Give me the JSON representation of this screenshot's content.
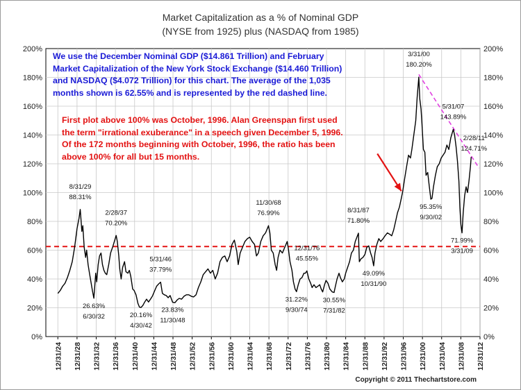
{
  "chart_data": {
    "type": "line",
    "title": "Market Capitalization as a % of Nominal GDP",
    "subtitle": "(NYSE from 1925) plus (NASDAQ from 1985)",
    "xlabel": "",
    "ylabel": "",
    "y_unit": "%",
    "xlim": [
      1922.5,
      2013.0
    ],
    "ylim": [
      0,
      200
    ],
    "y_ticks": [
      0,
      20,
      40,
      60,
      80,
      100,
      120,
      140,
      160,
      180,
      200
    ],
    "y_tick_labels": [
      "0%",
      "20%",
      "40%",
      "60%",
      "80%",
      "100%",
      "120%",
      "140%",
      "160%",
      "180%",
      "200%"
    ],
    "y_tick_labels_right": [
      "0%",
      "20%",
      "40%",
      "60%",
      "80%",
      "100%",
      "120%",
      "140%",
      "160%",
      "180%",
      "200%"
    ],
    "x_tick_labels": [
      "12/31/24",
      "12/31/28",
      "12/31/32",
      "12/31/36",
      "12/31/40",
      "12/31/44",
      "12/31/48",
      "12/31/52",
      "12/31/56",
      "12/31/60",
      "12/31/64",
      "12/31/68",
      "12/31/72",
      "12/31/76",
      "12/31/80",
      "12/31/84",
      "12/31/88",
      "12/31/92",
      "12/31/96",
      "12/31/00",
      "12/31/04",
      "12/31/08",
      "12/31/12"
    ],
    "x_tick_values": [
      1925,
      1929,
      1933,
      1937,
      1941,
      1945,
      1949,
      1953,
      1957,
      1961,
      1965,
      1969,
      1973,
      1977,
      1981,
      1985,
      1989,
      1993,
      1997,
      2001,
      2005,
      2009,
      2013
    ],
    "grid": true,
    "series": [
      {
        "color": "#000000",
        "points": [
          [
            1925.0,
            30
          ],
          [
            1925.5,
            32
          ],
          [
            1926.0,
            35
          ],
          [
            1926.5,
            37
          ],
          [
            1927.0,
            41
          ],
          [
            1927.5,
            46
          ],
          [
            1928.0,
            52
          ],
          [
            1928.5,
            62
          ],
          [
            1929.0,
            75
          ],
          [
            1929.4,
            82
          ],
          [
            1929.67,
            88.3
          ],
          [
            1929.85,
            80
          ],
          [
            1930.0,
            73
          ],
          [
            1930.2,
            77
          ],
          [
            1930.5,
            62
          ],
          [
            1930.8,
            55
          ],
          [
            1931.0,
            60
          ],
          [
            1931.3,
            50
          ],
          [
            1931.6,
            44
          ],
          [
            1931.9,
            38
          ],
          [
            1932.2,
            32
          ],
          [
            1932.5,
            26.6
          ],
          [
            1932.7,
            35
          ],
          [
            1932.9,
            44
          ],
          [
            1933.1,
            38
          ],
          [
            1933.4,
            50
          ],
          [
            1933.7,
            56
          ],
          [
            1934.0,
            58
          ],
          [
            1934.3,
            50
          ],
          [
            1934.6,
            46
          ],
          [
            1934.9,
            44
          ],
          [
            1935.2,
            43
          ],
          [
            1935.6,
            50
          ],
          [
            1936.0,
            58
          ],
          [
            1936.5,
            63
          ],
          [
            1937.16,
            70.2
          ],
          [
            1937.4,
            66
          ],
          [
            1937.7,
            56
          ],
          [
            1937.9,
            47
          ],
          [
            1938.2,
            40
          ],
          [
            1938.5,
            48
          ],
          [
            1938.9,
            52
          ],
          [
            1939.2,
            45
          ],
          [
            1939.6,
            44
          ],
          [
            1939.9,
            46
          ],
          [
            1940.2,
            42
          ],
          [
            1940.6,
            33
          ],
          [
            1940.9,
            32
          ],
          [
            1941.3,
            29
          ],
          [
            1941.7,
            23
          ],
          [
            1942.0,
            20.5
          ],
          [
            1942.33,
            20.2
          ],
          [
            1942.7,
            21.5
          ],
          [
            1943.1,
            24
          ],
          [
            1943.5,
            26
          ],
          [
            1943.9,
            24
          ],
          [
            1944.3,
            26
          ],
          [
            1944.7,
            28
          ],
          [
            1945.2,
            32
          ],
          [
            1945.6,
            35
          ],
          [
            1946.0,
            36.5
          ],
          [
            1946.42,
            37.8
          ],
          [
            1946.8,
            30
          ],
          [
            1947.2,
            29
          ],
          [
            1947.6,
            28.5
          ],
          [
            1948.0,
            27
          ],
          [
            1948.4,
            28.5
          ],
          [
            1948.92,
            23.8
          ],
          [
            1949.4,
            23.5
          ],
          [
            1949.9,
            25.5
          ],
          [
            1950.3,
            26.5
          ],
          [
            1950.8,
            26
          ],
          [
            1951.3,
            28
          ],
          [
            1951.8,
            29
          ],
          [
            1952.3,
            29
          ],
          [
            1952.8,
            28
          ],
          [
            1953.3,
            27.5
          ],
          [
            1953.8,
            29
          ],
          [
            1954.3,
            34
          ],
          [
            1954.8,
            38
          ],
          [
            1955.3,
            43
          ],
          [
            1955.8,
            45
          ],
          [
            1956.3,
            47
          ],
          [
            1956.8,
            44
          ],
          [
            1957.3,
            46
          ],
          [
            1957.8,
            40
          ],
          [
            1958.3,
            44
          ],
          [
            1958.8,
            52
          ],
          [
            1959.3,
            55
          ],
          [
            1959.8,
            56
          ],
          [
            1960.3,
            52
          ],
          [
            1960.8,
            56
          ],
          [
            1961.3,
            64
          ],
          [
            1961.8,
            67
          ],
          [
            1962.3,
            59
          ],
          [
            1962.6,
            50
          ],
          [
            1963.0,
            58
          ],
          [
            1963.5,
            62
          ],
          [
            1964.0,
            66
          ],
          [
            1964.5,
            68
          ],
          [
            1965.0,
            69
          ],
          [
            1965.5,
            66
          ],
          [
            1966.0,
            64
          ],
          [
            1966.4,
            56
          ],
          [
            1966.8,
            58
          ],
          [
            1967.3,
            66
          ],
          [
            1967.8,
            70
          ],
          [
            1968.3,
            72
          ],
          [
            1968.91,
            77
          ],
          [
            1969.2,
            72
          ],
          [
            1969.5,
            60
          ],
          [
            1969.9,
            58
          ],
          [
            1970.3,
            50
          ],
          [
            1970.6,
            46
          ],
          [
            1970.9,
            55
          ],
          [
            1971.3,
            60
          ],
          [
            1971.8,
            58
          ],
          [
            1972.3,
            62
          ],
          [
            1972.8,
            66
          ],
          [
            1973.1,
            60
          ],
          [
            1973.4,
            52
          ],
          [
            1973.8,
            46
          ],
          [
            1974.1,
            38
          ],
          [
            1974.45,
            33
          ],
          [
            1974.75,
            31.2
          ],
          [
            1975.1,
            36
          ],
          [
            1975.5,
            40
          ],
          [
            1975.9,
            41
          ],
          [
            1976.3,
            44
          ],
          [
            1976.6,
            44
          ],
          [
            1976.92,
            45.6
          ],
          [
            1977.3,
            40
          ],
          [
            1977.7,
            37
          ],
          [
            1978.0,
            34
          ],
          [
            1978.4,
            36
          ],
          [
            1978.8,
            34
          ],
          [
            1979.2,
            35
          ],
          [
            1979.6,
            36
          ],
          [
            1979.9,
            33
          ],
          [
            1980.2,
            31
          ],
          [
            1980.6,
            36
          ],
          [
            1980.9,
            39
          ],
          [
            1981.3,
            37
          ],
          [
            1981.7,
            33
          ],
          [
            1982.2,
            31
          ],
          [
            1982.58,
            30.6
          ],
          [
            1982.8,
            34
          ],
          [
            1983.2,
            40
          ],
          [
            1983.6,
            44
          ],
          [
            1983.9,
            41
          ],
          [
            1984.3,
            38
          ],
          [
            1984.7,
            40
          ],
          [
            1985.0,
            44
          ],
          [
            1985.4,
            48
          ],
          [
            1985.8,
            52
          ],
          [
            1986.2,
            58
          ],
          [
            1986.6,
            60
          ],
          [
            1987.0,
            66
          ],
          [
            1987.66,
            71.8
          ],
          [
            1987.85,
            52
          ],
          [
            1988.2,
            54
          ],
          [
            1988.6,
            55
          ],
          [
            1989.0,
            57
          ],
          [
            1989.4,
            62
          ],
          [
            1989.8,
            63
          ],
          [
            1990.2,
            58
          ],
          [
            1990.5,
            55
          ],
          [
            1990.83,
            49.1
          ],
          [
            1991.1,
            58
          ],
          [
            1991.5,
            64
          ],
          [
            1991.9,
            68
          ],
          [
            1992.3,
            66
          ],
          [
            1992.8,
            68
          ],
          [
            1993.2,
            70
          ],
          [
            1993.7,
            72
          ],
          [
            1994.2,
            71
          ],
          [
            1994.6,
            70
          ],
          [
            1995.0,
            74
          ],
          [
            1995.4,
            80
          ],
          [
            1995.8,
            86
          ],
          [
            1996.2,
            90
          ],
          [
            1996.6,
            96
          ],
          [
            1996.9,
            101
          ],
          [
            1997.3,
            110
          ],
          [
            1997.7,
            118
          ],
          [
            1998.1,
            126
          ],
          [
            1998.5,
            124
          ],
          [
            1998.8,
            130
          ],
          [
            1999.2,
            140
          ],
          [
            1999.6,
            150
          ],
          [
            1999.9,
            166
          ],
          [
            2000.25,
            180.2
          ],
          [
            2000.45,
            165
          ],
          [
            2000.7,
            158
          ],
          [
            2000.9,
            148
          ],
          [
            2001.2,
            130
          ],
          [
            2001.5,
            128
          ],
          [
            2001.75,
            112
          ],
          [
            2002.1,
            114
          ],
          [
            2002.4,
            105
          ],
          [
            2002.75,
            95.35
          ],
          [
            2003.0,
            96
          ],
          [
            2003.3,
            104
          ],
          [
            2003.7,
            112
          ],
          [
            2004.1,
            118
          ],
          [
            2004.5,
            120
          ],
          [
            2004.9,
            124
          ],
          [
            2005.3,
            126
          ],
          [
            2005.7,
            128
          ],
          [
            2006.1,
            133
          ],
          [
            2006.5,
            130
          ],
          [
            2006.9,
            138
          ],
          [
            2007.42,
            143.9
          ],
          [
            2007.7,
            140
          ],
          [
            2008.0,
            132
          ],
          [
            2008.3,
            122
          ],
          [
            2008.6,
            108
          ],
          [
            2008.8,
            90
          ],
          [
            2009.0,
            78
          ],
          [
            2009.25,
            72
          ],
          [
            2009.5,
            86
          ],
          [
            2009.8,
            98
          ],
          [
            2010.1,
            104
          ],
          [
            2010.4,
            100
          ],
          [
            2010.7,
            108
          ],
          [
            2011.0,
            118
          ],
          [
            2011.16,
            124.7
          ]
        ]
      }
    ],
    "reference_lines": [
      {
        "type": "horizontal",
        "value": 62.55,
        "color": "#e31212",
        "style": "dashed"
      },
      {
        "type": "trend",
        "from": [
          2000.25,
          182
        ],
        "to": [
          2012.8,
          117
        ],
        "color": "#e040e0",
        "style": "dashed"
      }
    ],
    "annotations": [
      {
        "lines": [
          "8/31/29",
          "88.31%"
        ],
        "x": 1929.67,
        "y": 88.3
      },
      {
        "lines": [
          "26.63%",
          "6/30/32"
        ],
        "x": 1932.5,
        "y": 26.6
      },
      {
        "lines": [
          "2/28/37",
          "70.20%"
        ],
        "x": 1937.16,
        "y": 70.2
      },
      {
        "lines": [
          "20.16%",
          "4/30/42"
        ],
        "x": 1942.33,
        "y": 20.2
      },
      {
        "lines": [
          "5/31/46",
          "37.79%"
        ],
        "x": 1946.42,
        "y": 37.8
      },
      {
        "lines": [
          "23.83%",
          "11/30/48"
        ],
        "x": 1948.92,
        "y": 23.8
      },
      {
        "lines": [
          "11/30/68",
          "76.99%"
        ],
        "x": 1968.91,
        "y": 77.0
      },
      {
        "lines": [
          "12/31/76",
          "45.55%"
        ],
        "x": 1976.92,
        "y": 45.6
      },
      {
        "lines": [
          "31.22%",
          "9/30/74"
        ],
        "x": 1974.75,
        "y": 31.2
      },
      {
        "lines": [
          "30.55%",
          "7/31/82"
        ],
        "x": 1982.58,
        "y": 30.6
      },
      {
        "lines": [
          "8/31/87",
          "71.80%"
        ],
        "x": 1987.66,
        "y": 71.8
      },
      {
        "lines": [
          "49.09%",
          "10/31/90"
        ],
        "x": 1990.83,
        "y": 49.1
      },
      {
        "lines": [
          "3/31/00",
          "180.20%"
        ],
        "x": 2000.25,
        "y": 180.2
      },
      {
        "lines": [
          "95.35%",
          "9/30/02"
        ],
        "x": 2002.75,
        "y": 95.35
      },
      {
        "lines": [
          "5/31/07",
          "143.89%"
        ],
        "x": 2007.42,
        "y": 143.9
      },
      {
        "lines": [
          "2/28/11",
          "124.71%"
        ],
        "x": 2011.16,
        "y": 124.7
      },
      {
        "lines": [
          "71.99%",
          "3/31/09"
        ],
        "x": 2009.25,
        "y": 72.0
      }
    ],
    "notes": {
      "blue": [
        "We use the December Nominal GDP ($14.861 Trillion) and February",
        "Market Capitalization of the New York Stock Exchange ($14.460 Trillion)",
        "and NASDAQ ($4.072 Trillion) for this chart.  The average of the 1,035",
        "months shown is 62.55% and is represented by the red dashed line."
      ],
      "red": [
        "First plot above 100% was October, 1996.  Alan Greenspan first used",
        "the term \"irrational exuberance\" in a speech given December 5, 1996.",
        "Of the 172 months beginning with October, 1996, the ratio has been",
        "above 100% for all but 15 months."
      ]
    },
    "arrow": {
      "from": [
        1991.6,
        127
      ],
      "to": [
        1996.6,
        101
      ],
      "color": "#e31212"
    },
    "copyright": "Copyright © 2011 Thechartstore.com",
    "colors": {
      "line": "#000000",
      "grid": "#c8c8c8",
      "average": "#e31212",
      "trend": "#e040e0",
      "blue_note": "#1a1ad6",
      "red_note": "#e31212"
    }
  }
}
